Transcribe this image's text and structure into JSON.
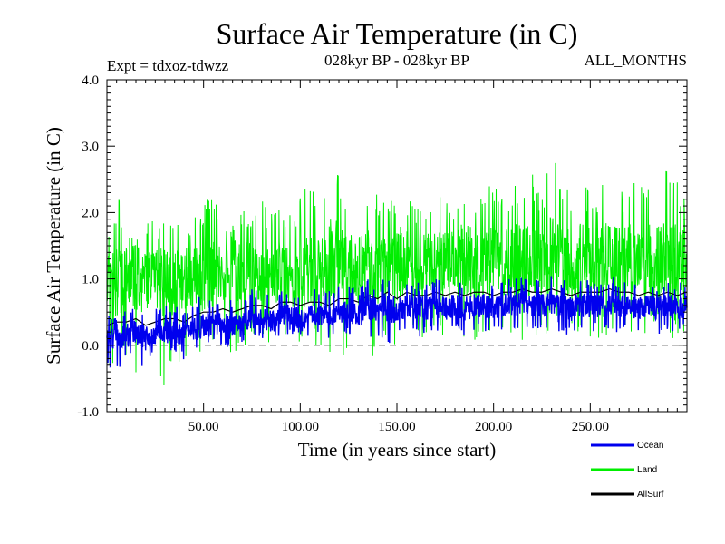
{
  "chart_data": {
    "type": "line",
    "title": "Surface Air Temperature (in C)",
    "subtitle_left": "Expt = tdxoz-tdwzz",
    "subtitle_center": "028kyr BP - 028kyr BP",
    "subtitle_right": "ALL_MONTHS",
    "xlabel": "Time (in years since start)",
    "ylabel": "Surface Air Temperature (in C)",
    "xlim": [
      0,
      300
    ],
    "ylim": [
      -1.0,
      4.0
    ],
    "x_ticks": [
      50,
      100,
      150,
      200,
      250
    ],
    "x_tick_labels": [
      "50.00",
      "100.00",
      "150.00",
      "200.00",
      "250.00"
    ],
    "y_ticks": [
      -1.0,
      0.0,
      1.0,
      2.0,
      3.0,
      4.0
    ],
    "y_tick_labels": [
      "-1.0",
      "0.0",
      "1.0",
      "2.0",
      "3.0",
      "4.0"
    ],
    "zero_line": "dashed",
    "legend_position": "bottom-right",
    "series": [
      {
        "name": "Land",
        "color": "#00ee00",
        "x": [
          0,
          5,
          10,
          15,
          20,
          25,
          30,
          35,
          40,
          45,
          50,
          55,
          60,
          65,
          70,
          75,
          80,
          85,
          90,
          95,
          100,
          105,
          110,
          115,
          120,
          125,
          130,
          135,
          140,
          145,
          150,
          155,
          160,
          165,
          170,
          175,
          180,
          185,
          190,
          195,
          200,
          205,
          210,
          215,
          220,
          225,
          230,
          235,
          240,
          245,
          250,
          255,
          260,
          265,
          270,
          275,
          280,
          285,
          290,
          295,
          300
        ],
        "values": [
          0.8,
          0.9,
          1.0,
          1.0,
          0.9,
          1.0,
          0.9,
          0.9,
          1.0,
          1.0,
          1.0,
          1.1,
          1.1,
          1.1,
          1.1,
          1.1,
          1.1,
          1.0,
          1.1,
          1.0,
          1.1,
          1.1,
          1.1,
          1.2,
          1.2,
          1.2,
          1.1,
          1.2,
          1.1,
          1.2,
          1.2,
          1.3,
          1.2,
          1.2,
          1.2,
          1.3,
          1.2,
          1.3,
          1.2,
          1.2,
          1.3,
          1.2,
          1.3,
          1.3,
          1.2,
          1.3,
          1.3,
          1.3,
          1.2,
          1.3,
          1.3,
          1.3,
          1.3,
          1.2,
          1.3,
          1.2,
          1.3,
          1.3,
          1.3,
          1.3,
          1.3
        ],
        "min": [
          -0.95,
          -0.4,
          -0.3,
          -0.55,
          -0.2,
          -0.3,
          -0.75,
          -0.3,
          -0.2,
          -0.2,
          -0.1,
          -0.15,
          0.0,
          -0.2,
          -0.1,
          -0.05,
          0.0,
          0.05,
          -0.05,
          0.0,
          0.0,
          0.0,
          -0.05,
          -0.7,
          -0.45,
          0.0,
          0.0,
          -0.4,
          0.0,
          0.05,
          -0.3,
          0.05,
          0.0,
          0.1,
          0.05,
          0.05,
          0.1,
          -0.3,
          0.05,
          0.1,
          0.1,
          0.05,
          0.1,
          0.05,
          0.1,
          0.1,
          0.05,
          0.1,
          0.1,
          0.1,
          0.05,
          0.1,
          0.1,
          -0.25,
          0.1,
          0.1,
          0.1,
          0.1,
          0.1,
          0.1,
          0.1
        ],
        "max": [
          1.6,
          2.3,
          1.9,
          1.8,
          1.9,
          1.9,
          2.0,
          1.9,
          2.1,
          1.9,
          2.2,
          2.3,
          2.0,
          1.9,
          2.1,
          2.0,
          2.2,
          2.0,
          2.1,
          2.0,
          2.3,
          2.4,
          2.2,
          2.4,
          2.6,
          2.2,
          2.3,
          2.6,
          2.4,
          2.2,
          2.3,
          2.3,
          2.1,
          2.2,
          2.3,
          2.4,
          2.2,
          2.4,
          2.3,
          2.6,
          2.4,
          2.3,
          2.4,
          2.5,
          2.6,
          2.3,
          3.1,
          2.5,
          2.4,
          2.5,
          2.3,
          2.4,
          2.6,
          2.3,
          2.5,
          2.4,
          2.6,
          2.4,
          2.8,
          2.5,
          2.1
        ]
      },
      {
        "name": "Ocean",
        "color": "#0000ee",
        "x": [
          0,
          5,
          10,
          15,
          20,
          25,
          30,
          35,
          40,
          45,
          50,
          55,
          60,
          65,
          70,
          75,
          80,
          85,
          90,
          95,
          100,
          105,
          110,
          115,
          120,
          125,
          130,
          135,
          140,
          145,
          150,
          155,
          160,
          165,
          170,
          175,
          180,
          185,
          190,
          195,
          200,
          205,
          210,
          215,
          220,
          225,
          230,
          235,
          240,
          245,
          250,
          255,
          260,
          265,
          270,
          275,
          280,
          285,
          290,
          295,
          300
        ],
        "values": [
          0.1,
          0.15,
          0.15,
          0.2,
          0.1,
          0.15,
          0.2,
          0.2,
          0.15,
          0.25,
          0.3,
          0.3,
          0.35,
          0.3,
          0.35,
          0.4,
          0.4,
          0.35,
          0.45,
          0.45,
          0.4,
          0.45,
          0.45,
          0.4,
          0.5,
          0.5,
          0.45,
          0.55,
          0.5,
          0.6,
          0.5,
          0.6,
          0.55,
          0.55,
          0.6,
          0.55,
          0.6,
          0.55,
          0.6,
          0.6,
          0.55,
          0.6,
          0.6,
          0.65,
          0.6,
          0.6,
          0.65,
          0.6,
          0.55,
          0.6,
          0.6,
          0.6,
          0.65,
          0.6,
          0.6,
          0.55,
          0.6,
          0.55,
          0.6,
          0.55,
          0.6
        ],
        "min": [
          -0.4,
          -0.35,
          -0.3,
          -0.2,
          -0.4,
          -0.1,
          -0.2,
          -0.1,
          -0.25,
          -0.15,
          -0.1,
          0.0,
          -0.05,
          0.0,
          0.05,
          0.1,
          0.1,
          0.05,
          0.1,
          0.15,
          0.1,
          0.15,
          0.15,
          0.1,
          0.2,
          0.15,
          0.1,
          -0.1,
          0.15,
          0.0,
          0.05,
          0.2,
          0.1,
          0.15,
          0.2,
          0.15,
          0.2,
          0.1,
          0.2,
          0.2,
          0.15,
          0.2,
          0.2,
          0.25,
          0.15,
          0.2,
          0.25,
          0.2,
          0.1,
          0.2,
          0.2,
          0.2,
          0.25,
          0.15,
          0.2,
          0.1,
          0.2,
          0.15,
          0.2,
          0.15,
          0.25
        ],
        "max": [
          0.45,
          0.5,
          0.55,
          0.6,
          0.5,
          0.55,
          0.6,
          0.6,
          0.55,
          0.7,
          0.75,
          0.7,
          0.75,
          0.7,
          0.75,
          0.85,
          0.8,
          0.8,
          0.85,
          0.9,
          0.8,
          0.85,
          0.85,
          0.85,
          0.9,
          0.95,
          0.85,
          1.0,
          0.95,
          1.05,
          0.9,
          1.0,
          0.95,
          0.95,
          1.0,
          0.95,
          1.0,
          0.95,
          1.0,
          1.0,
          0.95,
          1.0,
          1.0,
          1.05,
          1.0,
          1.0,
          1.05,
          1.0,
          0.95,
          1.0,
          1.0,
          1.0,
          1.05,
          1.0,
          1.0,
          0.95,
          1.0,
          0.95,
          1.0,
          0.95,
          0.95
        ]
      },
      {
        "name": "AllSurf",
        "color": "#000000",
        "x": [
          0,
          5,
          10,
          15,
          20,
          25,
          30,
          35,
          40,
          45,
          50,
          55,
          60,
          65,
          70,
          75,
          80,
          85,
          90,
          95,
          100,
          105,
          110,
          115,
          120,
          125,
          130,
          135,
          140,
          145,
          150,
          155,
          160,
          165,
          170,
          175,
          180,
          185,
          190,
          195,
          200,
          205,
          210,
          215,
          220,
          225,
          230,
          235,
          240,
          245,
          250,
          255,
          260,
          265,
          270,
          275,
          280,
          285,
          290,
          295,
          300
        ],
        "values": [
          0.3,
          0.35,
          0.35,
          0.4,
          0.3,
          0.35,
          0.4,
          0.4,
          0.35,
          0.45,
          0.5,
          0.5,
          0.55,
          0.5,
          0.55,
          0.6,
          0.6,
          0.55,
          0.65,
          0.65,
          0.6,
          0.65,
          0.65,
          0.6,
          0.7,
          0.7,
          0.65,
          0.75,
          0.7,
          0.8,
          0.7,
          0.8,
          0.75,
          0.75,
          0.8,
          0.75,
          0.8,
          0.75,
          0.8,
          0.8,
          0.75,
          0.8,
          0.8,
          0.85,
          0.8,
          0.8,
          0.85,
          0.8,
          0.75,
          0.8,
          0.8,
          0.8,
          0.85,
          0.8,
          0.8,
          0.75,
          0.8,
          0.75,
          0.8,
          0.75,
          0.8
        ]
      }
    ]
  }
}
